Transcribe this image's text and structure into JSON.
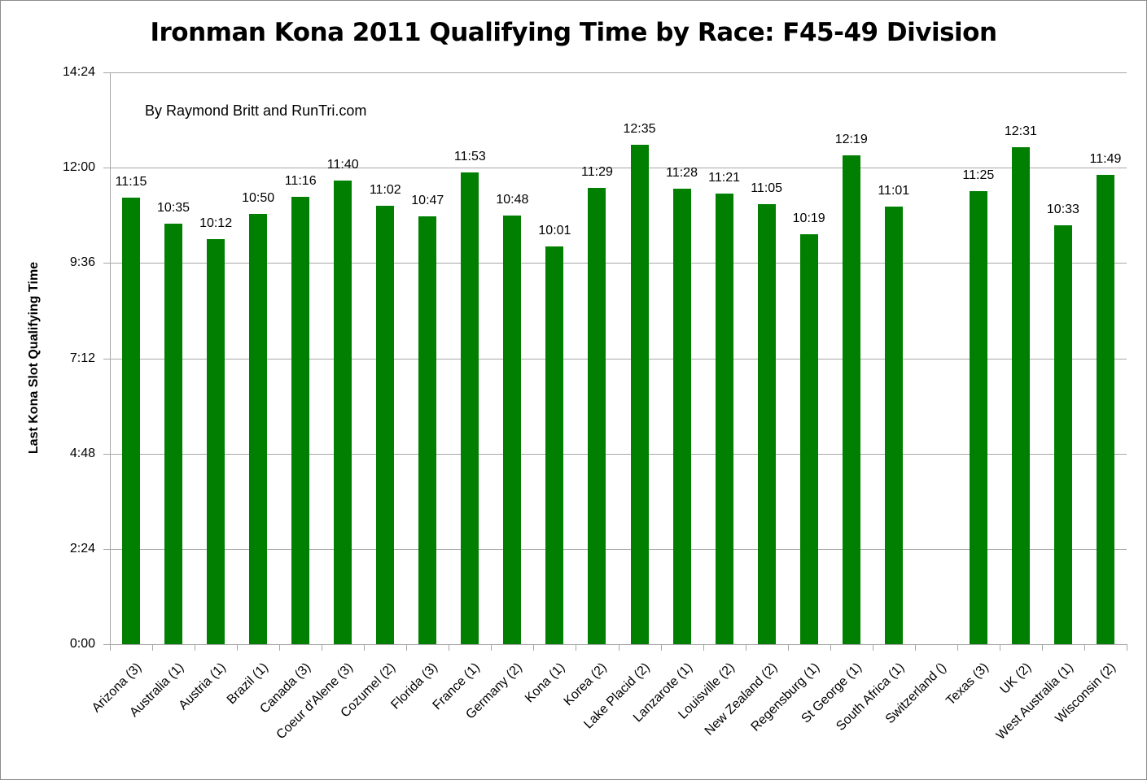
{
  "chart_data": {
    "type": "bar",
    "title": "Ironman Kona 2011 Qualifying Time by Race: F45-49 Division",
    "annotation": "By Raymond Britt and RunTri.com",
    "xlabel": "",
    "ylabel": "Last Kona Slot Qualifying Time",
    "ylim": [
      "0:00",
      "14:24"
    ],
    "yticks": [
      "14:24",
      "12:00",
      "9:36",
      "7:12",
      "4:48",
      "2:24",
      "0:00"
    ],
    "grid": true,
    "legend": null,
    "bar_color": "#007f00",
    "categories": [
      "Arizona (3)",
      "Australia (1)",
      "Austria (1)",
      "Brazil (1)",
      "Canada (3)",
      "Coeur d'Alene (3)",
      "Cozumel (2)",
      "Florida (3)",
      "France (1)",
      "Germany (2)",
      "Kona (1)",
      "Korea (2)",
      "Lake Placid (2)",
      "Lanzarote (1)",
      "Louisville (2)",
      "New Zealand (2)",
      "Regensburg (1)",
      "St George (1)",
      "South Africa (1)",
      "Switzerland ()",
      "Texas (3)",
      "UK (2)",
      "West Australia (1)",
      "Wisconsin (2)"
    ],
    "values": [
      "11:15",
      "10:35",
      "10:12",
      "10:50",
      "11:16",
      "11:40",
      "11:02",
      "10:47",
      "11:53",
      "10:48",
      "10:01",
      "11:29",
      "12:35",
      "11:28",
      "11:21",
      "11:05",
      "10:19",
      "12:19",
      "11:01",
      null,
      "11:25",
      "12:31",
      "10:33",
      "11:49"
    ],
    "values_minutes": [
      675,
      635,
      612,
      650,
      676,
      700,
      662,
      647,
      713,
      648,
      601,
      689,
      755,
      688,
      681,
      665,
      619,
      739,
      661,
      null,
      685,
      751,
      633,
      709
    ]
  }
}
